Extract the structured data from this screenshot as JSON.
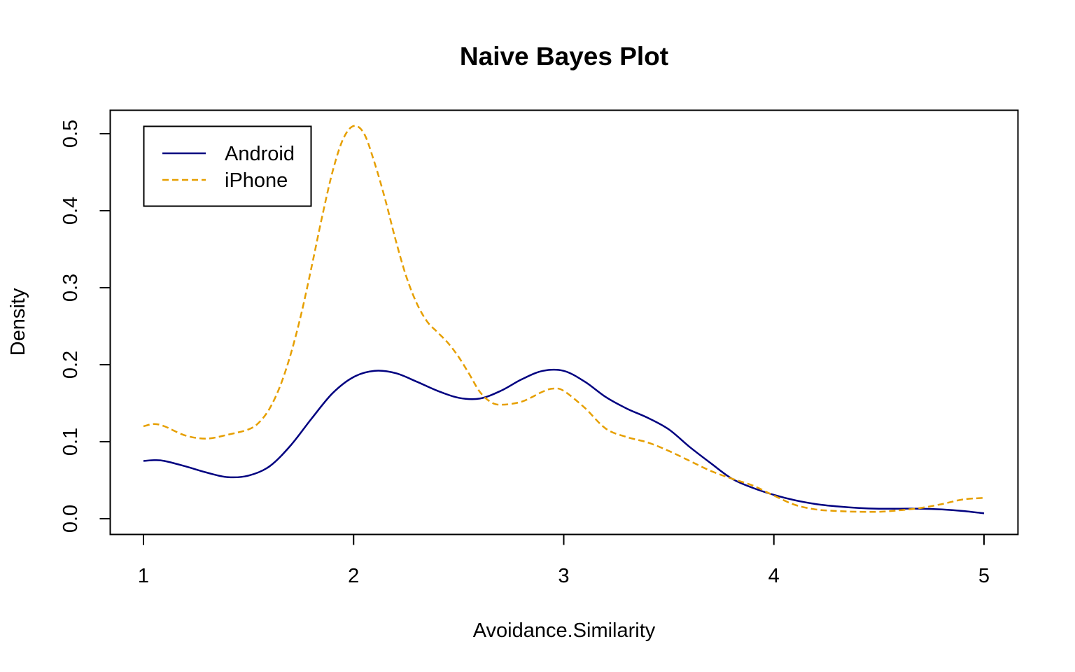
{
  "chart_data": {
    "type": "line",
    "title": "Naive Bayes Plot",
    "xlabel": "Avoidance.Similarity",
    "ylabel": "Density",
    "xlim": [
      1,
      5
    ],
    "ylim": [
      0,
      0.5
    ],
    "x_ticks": [
      "1",
      "2",
      "3",
      "4",
      "5"
    ],
    "y_ticks": [
      "0.0",
      "0.1",
      "0.2",
      "0.3",
      "0.4",
      "0.5"
    ],
    "grid": false,
    "legend_position": "top-left",
    "series": [
      {
        "name": "Android",
        "color": "#000080",
        "line_style": "solid",
        "points": [
          [
            1.0,
            0.075
          ],
          [
            1.05,
            0.076
          ],
          [
            1.1,
            0.075
          ],
          [
            1.2,
            0.068
          ],
          [
            1.3,
            0.06
          ],
          [
            1.4,
            0.054
          ],
          [
            1.5,
            0.056
          ],
          [
            1.6,
            0.068
          ],
          [
            1.7,
            0.095
          ],
          [
            1.8,
            0.13
          ],
          [
            1.9,
            0.163
          ],
          [
            2.0,
            0.184
          ],
          [
            2.1,
            0.192
          ],
          [
            2.2,
            0.189
          ],
          [
            2.3,
            0.178
          ],
          [
            2.4,
            0.166
          ],
          [
            2.5,
            0.157
          ],
          [
            2.6,
            0.156
          ],
          [
            2.7,
            0.166
          ],
          [
            2.8,
            0.181
          ],
          [
            2.9,
            0.192
          ],
          [
            3.0,
            0.192
          ],
          [
            3.1,
            0.178
          ],
          [
            3.2,
            0.158
          ],
          [
            3.3,
            0.143
          ],
          [
            3.4,
            0.131
          ],
          [
            3.5,
            0.116
          ],
          [
            3.6,
            0.093
          ],
          [
            3.7,
            0.072
          ],
          [
            3.8,
            0.052
          ],
          [
            3.9,
            0.04
          ],
          [
            4.0,
            0.031
          ],
          [
            4.1,
            0.024
          ],
          [
            4.2,
            0.019
          ],
          [
            4.3,
            0.016
          ],
          [
            4.4,
            0.014
          ],
          [
            4.5,
            0.013
          ],
          [
            4.6,
            0.013
          ],
          [
            4.7,
            0.013
          ],
          [
            4.8,
            0.012
          ],
          [
            4.9,
            0.01
          ],
          [
            5.0,
            0.007
          ]
        ]
      },
      {
        "name": "iPhone",
        "color": "#E69F00",
        "line_style": "dashed",
        "points": [
          [
            1.0,
            0.12
          ],
          [
            1.05,
            0.123
          ],
          [
            1.1,
            0.12
          ],
          [
            1.2,
            0.108
          ],
          [
            1.3,
            0.104
          ],
          [
            1.4,
            0.109
          ],
          [
            1.5,
            0.116
          ],
          [
            1.55,
            0.125
          ],
          [
            1.6,
            0.143
          ],
          [
            1.65,
            0.172
          ],
          [
            1.7,
            0.213
          ],
          [
            1.75,
            0.265
          ],
          [
            1.8,
            0.327
          ],
          [
            1.85,
            0.392
          ],
          [
            1.9,
            0.451
          ],
          [
            1.95,
            0.493
          ],
          [
            2.0,
            0.51
          ],
          [
            2.05,
            0.5
          ],
          [
            2.1,
            0.462
          ],
          [
            2.15,
            0.415
          ],
          [
            2.2,
            0.362
          ],
          [
            2.25,
            0.315
          ],
          [
            2.3,
            0.28
          ],
          [
            2.35,
            0.256
          ],
          [
            2.4,
            0.242
          ],
          [
            2.45,
            0.228
          ],
          [
            2.5,
            0.21
          ],
          [
            2.55,
            0.188
          ],
          [
            2.6,
            0.165
          ],
          [
            2.65,
            0.152
          ],
          [
            2.7,
            0.148
          ],
          [
            2.8,
            0.152
          ],
          [
            2.9,
            0.165
          ],
          [
            2.95,
            0.169
          ],
          [
            3.0,
            0.166
          ],
          [
            3.1,
            0.144
          ],
          [
            3.2,
            0.117
          ],
          [
            3.3,
            0.106
          ],
          [
            3.4,
            0.099
          ],
          [
            3.5,
            0.088
          ],
          [
            3.6,
            0.075
          ],
          [
            3.7,
            0.062
          ],
          [
            3.8,
            0.052
          ],
          [
            3.9,
            0.043
          ],
          [
            4.0,
            0.03
          ],
          [
            4.1,
            0.018
          ],
          [
            4.2,
            0.012
          ],
          [
            4.3,
            0.01
          ],
          [
            4.4,
            0.009
          ],
          [
            4.5,
            0.009
          ],
          [
            4.6,
            0.011
          ],
          [
            4.7,
            0.014
          ],
          [
            4.8,
            0.019
          ],
          [
            4.9,
            0.025
          ],
          [
            5.0,
            0.027
          ]
        ]
      }
    ]
  }
}
